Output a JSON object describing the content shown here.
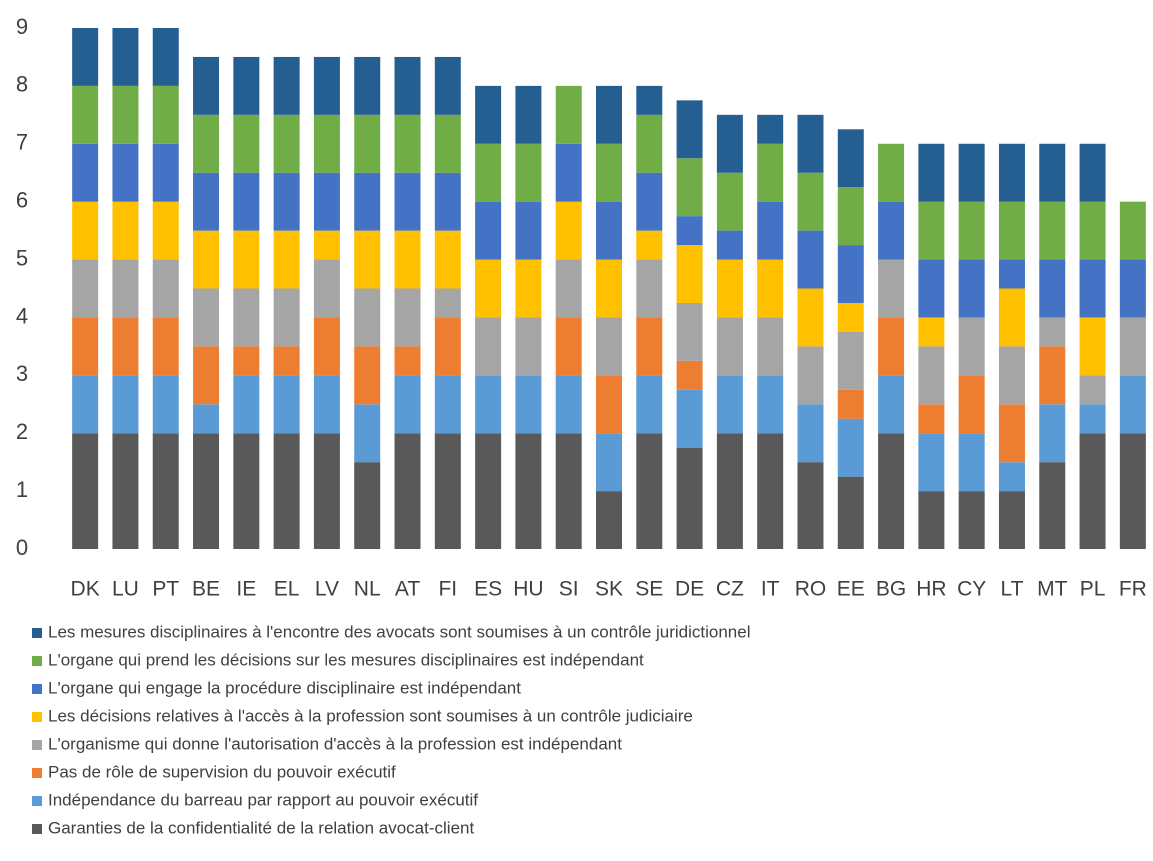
{
  "chart_data": {
    "type": "stacked_bar",
    "categories": [
      "DK",
      "LU",
      "PT",
      "BE",
      "IE",
      "EL",
      "LV",
      "NL",
      "AT",
      "FI",
      "ES",
      "HU",
      "SI",
      "SK",
      "SE",
      "DE",
      "CZ",
      "IT",
      "RO",
      "EE",
      "BG",
      "HR",
      "CY",
      "LT",
      "MT",
      "PL",
      "FR"
    ],
    "series": [
      {
        "name": "Garanties de la confidentialité de la relation avocat-client",
        "color": "#595959",
        "values": [
          2,
          2,
          2,
          2,
          2,
          2,
          2,
          1.5,
          2,
          2,
          2,
          2,
          2,
          1,
          2,
          1.75,
          2,
          2,
          1.5,
          1.25,
          2,
          1,
          1,
          1,
          1.5,
          2,
          2
        ]
      },
      {
        "name": "Indépendance du barreau par rapport au pouvoir exécutif",
        "color": "#5b9bd5",
        "values": [
          1,
          1,
          1,
          0.5,
          1,
          1,
          1,
          1,
          1,
          1,
          1,
          1,
          1,
          1,
          1,
          1,
          1,
          1,
          1,
          1,
          1,
          1,
          1,
          0.5,
          1,
          0.5,
          1
        ]
      },
      {
        "name": "Pas de rôle de supervision du pouvoir exécutif",
        "color": "#ed7d31",
        "values": [
          1,
          1,
          1,
          1,
          0.5,
          0.5,
          1,
          1,
          0.5,
          1,
          0,
          0,
          1,
          1,
          1,
          0.5,
          0,
          0,
          0,
          0.5,
          1,
          0.5,
          1,
          1,
          1,
          0,
          0
        ]
      },
      {
        "name": "L'organisme qui donne l'autorisation d'accès à la profession est indépendant",
        "color": "#a5a5a5",
        "values": [
          1,
          1,
          1,
          1,
          1,
          1,
          1,
          1,
          1,
          0.5,
          1,
          1,
          1,
          1,
          1,
          1,
          1,
          1,
          1,
          1,
          1,
          1,
          1,
          1,
          0.5,
          0.5,
          1
        ]
      },
      {
        "name": "Les décisions relatives à l'accès à la profession sont soumises à un contrôle judiciaire",
        "color": "#ffc000",
        "values": [
          1,
          1,
          1,
          1,
          1,
          1,
          0.5,
          1,
          1,
          1,
          1,
          1,
          1,
          1,
          0.5,
          1,
          1,
          1,
          1,
          0.5,
          0,
          0.5,
          0,
          1,
          0,
          1,
          0
        ]
      },
      {
        "name": "L'organe qui engage la procédure disciplinaire est indépendant",
        "color": "#4472c4",
        "values": [
          1,
          1,
          1,
          1,
          1,
          1,
          1,
          1,
          1,
          1,
          1,
          1,
          1,
          1,
          1,
          0.5,
          0.5,
          1,
          1,
          1,
          1,
          1,
          1,
          0.5,
          1,
          1,
          1
        ]
      },
      {
        "name": "L'organe qui prend les décisions sur les mesures disciplinaires est indépendant",
        "color": "#70ad47",
        "values": [
          1,
          1,
          1,
          1,
          1,
          1,
          1,
          1,
          1,
          1,
          1,
          1,
          1,
          1,
          1,
          1,
          1,
          1,
          1,
          1,
          1,
          1,
          1,
          1,
          1,
          1,
          1
        ]
      },
      {
        "name": "Les mesures disciplinaires à l'encontre des avocats sont soumises à un contrôle juridictionnel",
        "color": "#255e91",
        "values": [
          1,
          1,
          1,
          1,
          1,
          1,
          1,
          1,
          1,
          1,
          1,
          1,
          0,
          1,
          0.5,
          1,
          1,
          0.5,
          1,
          1,
          0,
          1,
          1,
          1,
          1,
          1,
          0
        ]
      }
    ],
    "ylim": [
      0,
      9
    ],
    "yticks": [
      0,
      1,
      2,
      3,
      4,
      5,
      6,
      7,
      8,
      9
    ],
    "grid": false,
    "legend": "bottom"
  }
}
